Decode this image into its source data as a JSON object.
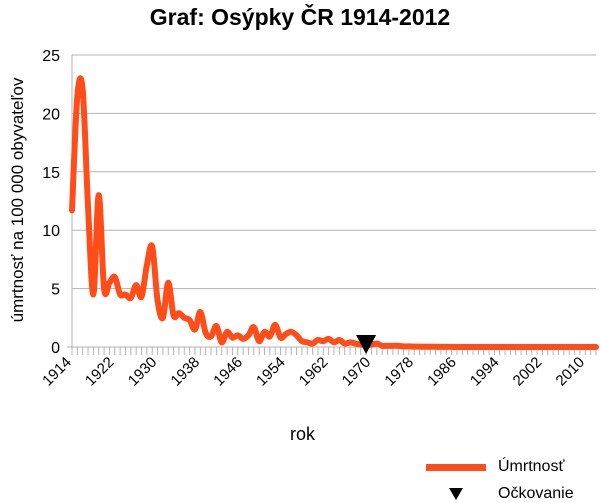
{
  "chart_data": {
    "type": "line",
    "title": "Graf: Osýpky ČR 1914-2012",
    "xlabel": "rok",
    "ylabel": "úmrtnosť na 100 000 obyvateľov",
    "xlim": [
      1914,
      2012
    ],
    "ylim": [
      0,
      25
    ],
    "y_ticks": [
      "0",
      "5",
      "10",
      "15",
      "20",
      "25"
    ],
    "x_tick_labels": [
      "1914",
      "1922",
      "1930",
      "1938",
      "1946",
      "1954",
      "1962",
      "1970",
      "1978",
      "1986",
      "1994",
      "2002",
      "2010"
    ],
    "grid": "horizontal",
    "legend_position": "bottom-right",
    "series": [
      {
        "name": "Úmrtnosť",
        "color": "#ff4d1a",
        "x": [
          1914,
          1915,
          1916,
          1917,
          1918,
          1919,
          1920,
          1921,
          1922,
          1923,
          1924,
          1925,
          1926,
          1927,
          1928,
          1929,
          1930,
          1931,
          1932,
          1933,
          1934,
          1935,
          1936,
          1937,
          1938,
          1939,
          1940,
          1941,
          1942,
          1943,
          1944,
          1945,
          1946,
          1947,
          1948,
          1949,
          1950,
          1951,
          1952,
          1953,
          1954,
          1955,
          1956,
          1957,
          1958,
          1959,
          1960,
          1961,
          1962,
          1963,
          1964,
          1965,
          1966,
          1967,
          1968,
          1969,
          1970,
          1971,
          1972,
          1973,
          1974,
          1975,
          1976,
          1977,
          1978,
          1979,
          1980,
          1981,
          1982,
          1983,
          1984,
          1985,
          1986,
          1987,
          1988,
          1989,
          1990,
          1991,
          1992,
          1993,
          1994,
          1995,
          1996,
          1997,
          1998,
          1999,
          2000,
          2001,
          2002,
          2003,
          2004,
          2005,
          2006,
          2007,
          2008,
          2009,
          2010,
          2011,
          2012
        ],
        "y": [
          11.7,
          21.5,
          22.0,
          12.0,
          4.5,
          13.0,
          5.0,
          5.5,
          6.0,
          4.5,
          4.5,
          4.2,
          5.3,
          4.3,
          7.0,
          8.6,
          4.0,
          2.5,
          5.5,
          2.7,
          2.9,
          2.5,
          2.3,
          1.5,
          3.0,
          1.2,
          0.9,
          1.8,
          0.4,
          1.3,
          0.8,
          1.0,
          0.7,
          1.0,
          1.7,
          0.5,
          1.3,
          0.9,
          1.9,
          0.8,
          1.1,
          1.3,
          1.0,
          0.5,
          0.4,
          0.3,
          0.6,
          0.5,
          0.7,
          0.4,
          0.6,
          0.3,
          0.4,
          0.3,
          0.2,
          0.2,
          0.2,
          0.3,
          0.1,
          0.1,
          0.1,
          0.1,
          0.05,
          0.05,
          0.03,
          0.03,
          0.02,
          0.02,
          0.02,
          0.01,
          0.01,
          0.01,
          0,
          0,
          0,
          0,
          0,
          0,
          0,
          0,
          0,
          0,
          0,
          0,
          0,
          0,
          0,
          0,
          0,
          0,
          0,
          0,
          0,
          0,
          0,
          0,
          0,
          0,
          0
        ]
      },
      {
        "name": "Očkovanie",
        "color": "#000000",
        "marker": "triangle-down",
        "x": [
          1969
        ],
        "y": [
          0
        ]
      }
    ]
  }
}
